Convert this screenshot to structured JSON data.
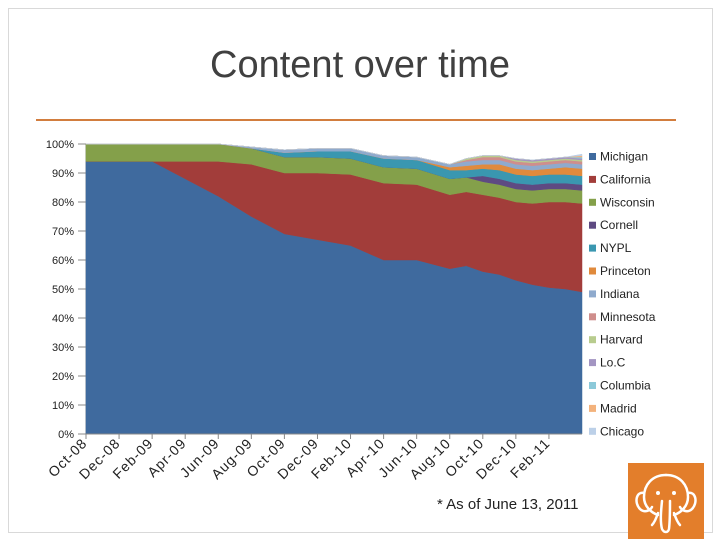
{
  "slide": {
    "title": "Content over time",
    "footnote": "* As of June 13, 2011",
    "accent_color": "#d27d3e",
    "logo_icon": "elephant-logo-icon"
  },
  "chart_data": {
    "type": "area",
    "stacked": "percent",
    "title": "Content over time",
    "categories": [
      "Oct-08",
      "Dec-08",
      "Feb-09",
      "Apr-09",
      "Jun-09",
      "Aug-09",
      "Oct-09",
      "Dec-09",
      "Feb-10",
      "Apr-10",
      "Jun-10",
      "Aug-10",
      "Oct-10",
      "Dec-10",
      "Feb-11"
    ],
    "x": [
      0,
      2,
      4,
      6,
      8,
      10,
      12,
      14,
      16,
      18,
      20,
      22,
      23,
      24,
      25,
      26,
      27,
      28,
      29,
      30
    ],
    "ylim": [
      0,
      100
    ],
    "yticks": [
      "0%",
      "10%",
      "20%",
      "30%",
      "40%",
      "50%",
      "60%",
      "70%",
      "80%",
      "90%",
      "100%"
    ],
    "legend_position": "right",
    "series": [
      {
        "name": "Michigan",
        "color": "#3f6a9e",
        "values": [
          94,
          94,
          94,
          88,
          82,
          75,
          69,
          67,
          65,
          60,
          60,
          57,
          58,
          56,
          55,
          53,
          51.5,
          50.5,
          50,
          49
        ]
      },
      {
        "name": "California",
        "color": "#a23d3a",
        "values": [
          0,
          0,
          0,
          6,
          12,
          18,
          21,
          23,
          24.5,
          26.5,
          26,
          25.5,
          25.5,
          26.5,
          26.5,
          27,
          28,
          29.5,
          30,
          30.5
        ]
      },
      {
        "name": "Wisconsin",
        "color": "#84a04a",
        "values": [
          6,
          6,
          6,
          6,
          6,
          5.5,
          5.5,
          5.5,
          5.5,
          5.5,
          5.5,
          5.5,
          5,
          4.5,
          4.5,
          4.5,
          4.5,
          4.5,
          4.5,
          4.5
        ]
      },
      {
        "name": "Cornell",
        "color": "#5e4a82",
        "values": [
          0,
          0,
          0,
          0,
          0,
          0,
          0,
          0,
          0,
          0,
          0,
          0,
          0,
          2,
          2,
          2,
          2,
          2,
          2,
          2
        ]
      },
      {
        "name": "NYPL",
        "color": "#3a97b0",
        "values": [
          0,
          0,
          0,
          0,
          0,
          0,
          1.5,
          2,
          2.5,
          3,
          3,
          3,
          2.5,
          2.5,
          3,
          3,
          3,
          3,
          3,
          3
        ]
      },
      {
        "name": "Princeton",
        "color": "#e08a3c",
        "values": [
          0,
          0,
          0,
          0,
          0,
          0,
          0,
          0,
          0,
          0,
          0,
          1,
          1.5,
          1.5,
          2,
          2,
          2,
          2,
          2.5,
          2.5
        ]
      },
      {
        "name": "Indiana",
        "color": "#8faacd",
        "values": [
          0,
          0,
          0,
          0,
          0,
          0.5,
          1,
          1,
          1,
          1,
          1,
          1,
          1.5,
          1.5,
          1.5,
          1.5,
          1.5,
          1.5,
          1.5,
          1.5
        ]
      },
      {
        "name": "Minnesota",
        "color": "#cf8e8c",
        "values": [
          0,
          0,
          0,
          0,
          0,
          0,
          0,
          0,
          0,
          0,
          0,
          0,
          0.5,
          1,
          1,
          1,
          1,
          1,
          1,
          1
        ]
      },
      {
        "name": "Harvard",
        "color": "#b8cc8e",
        "values": [
          0,
          0,
          0,
          0,
          0,
          0,
          0,
          0,
          0,
          0,
          0,
          0,
          0.5,
          0.5,
          0.5,
          0.5,
          0.5,
          0.5,
          0.5,
          0.5
        ]
      },
      {
        "name": "Lo.C",
        "color": "#a395c2",
        "values": [
          0,
          0,
          0,
          0,
          0,
          0,
          0,
          0,
          0,
          0,
          0,
          0,
          0,
          0,
          0,
          0.5,
          0.5,
          0.5,
          0.5,
          0.5
        ]
      },
      {
        "name": "Columbia",
        "color": "#8cc9d9",
        "values": [
          0,
          0,
          0,
          0,
          0,
          0,
          0,
          0,
          0,
          0,
          0,
          0,
          0,
          0,
          0,
          0,
          0,
          0,
          0,
          0.5
        ]
      },
      {
        "name": "Madrid",
        "color": "#f3b27c",
        "values": [
          0,
          0,
          0,
          0,
          0,
          0,
          0,
          0,
          0,
          0,
          0,
          0,
          0,
          0,
          0,
          0,
          0,
          0,
          0,
          0.5
        ]
      },
      {
        "name": "Chicago",
        "color": "#bcd0e8",
        "values": [
          0,
          0,
          0,
          0,
          0,
          0,
          0,
          0,
          0,
          0,
          0,
          0,
          0,
          0,
          0,
          0,
          0,
          0,
          0,
          0.5
        ]
      }
    ]
  }
}
